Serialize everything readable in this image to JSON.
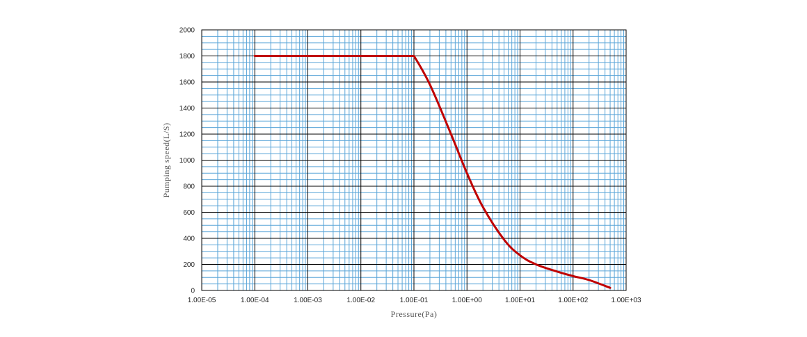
{
  "chart_data": {
    "type": "line",
    "title": "",
    "xlabel": "Pressure(Pa)",
    "ylabel": "Pumping speed(L/S)",
    "x_scale": "log",
    "xlim": [
      1e-05,
      1000
    ],
    "ylim": [
      0,
      2000
    ],
    "x_tick_values": [
      1e-05,
      0.0001,
      0.001,
      0.01,
      0.1,
      1,
      10,
      100,
      1000
    ],
    "x_tick_labels": [
      "1.00E-05",
      "1.00E-04",
      "1.00E-03",
      "1.00E-02",
      "1.00E-01",
      "1.00E+00",
      "1.00E+01",
      "1.00E+02",
      "1.00E+03"
    ],
    "y_ticks": [
      0,
      200,
      400,
      600,
      800,
      1000,
      1200,
      1400,
      1600,
      1800,
      2000
    ],
    "y_tick_labels": [
      "0",
      "200",
      "400",
      "600",
      "800",
      "1000",
      "1200",
      "1400",
      "1600",
      "1800",
      "2000"
    ],
    "grid": true,
    "legend": "none",
    "colors": {
      "line": "#c00000",
      "major_grid": "#000000",
      "minor_grid": "#5aa5d8",
      "axis_text": "#222222",
      "axis_title": "#555555"
    },
    "series": [
      {
        "x": [
          0.0001,
          0.001,
          0.01,
          0.1,
          0.2,
          0.5,
          1,
          2,
          5,
          10,
          20,
          50,
          100,
          200,
          500
        ],
        "y": [
          1800,
          1800,
          1800,
          1800,
          1580,
          1200,
          900,
          640,
          390,
          270,
          200,
          145,
          110,
          80,
          20
        ]
      }
    ]
  }
}
